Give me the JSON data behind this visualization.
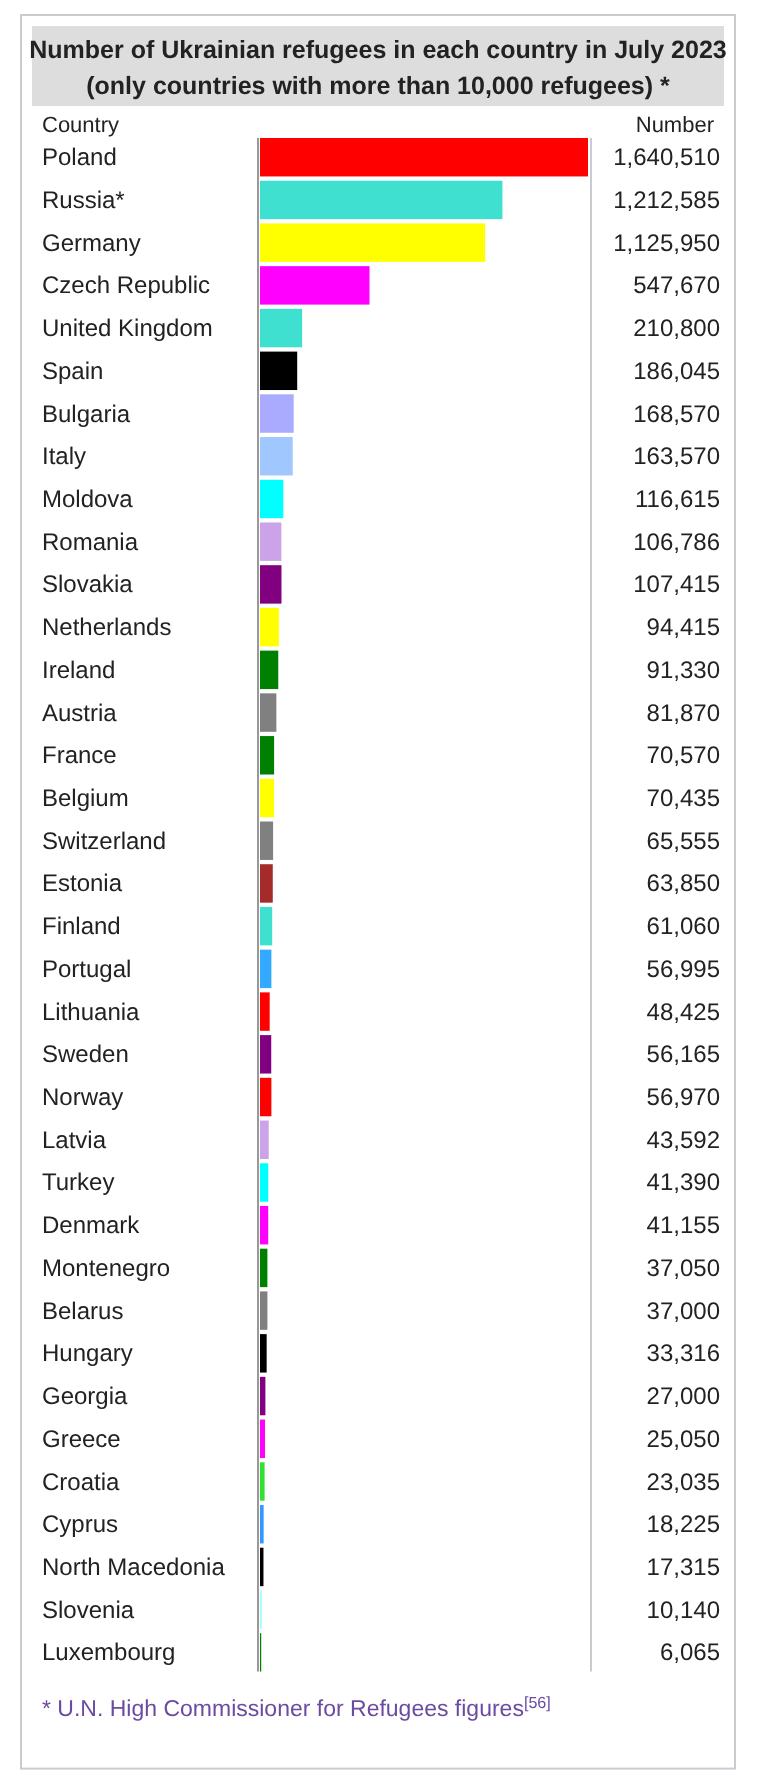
{
  "chart_data": {
    "type": "bar",
    "orientation": "horizontal",
    "value_labels": [
      "1,640,510",
      "1,212,585",
      "1,125,950",
      "547,670",
      "210,800",
      "186,045",
      "168,570",
      "163,570",
      "116,615",
      "106,786",
      "107,415",
      "94,415",
      "91,330",
      "81,870",
      "70,570",
      "70,435",
      "65,555",
      "63,850",
      "61,060",
      "56,995",
      "48,425",
      "56,165",
      "56,970",
      "43,592",
      "41,390",
      "41,155",
      "37,050",
      "37,000",
      "33,316",
      "27,000",
      "25,050",
      "23,035",
      "18,225",
      "17,315",
      "10,140",
      "6,065"
    ],
    "title": "Number of Ukrainian refugees in each country in July 2023",
    "subtitle": "(only countries with more than 10,000 refugees) *",
    "ylabel": "Country",
    "xlabel": "Number",
    "annotations": [
      "* U.N. High Commissioner for Refugees figures$^{[56]}$"
    ],
    "categories": [
      "Poland",
      "Russia*",
      "Germany",
      "Czech Republic",
      "United Kingdom",
      "Spain",
      "Bulgaria",
      "Italy",
      "Moldova",
      "Romania",
      "Slovakia",
      "Netherlands",
      "Ireland",
      "Austria",
      "France",
      "Belgium",
      "Switzerland",
      "Estonia",
      "Finland",
      "Portugal",
      "Lithuania",
      "Sweden",
      "Norway",
      "Latvia",
      "Turkey",
      "Denmark",
      "Montenegro",
      "Belarus",
      "Hungary",
      "Georgia",
      "Greece",
      "Croatia",
      "Cyprus",
      "North Macedonia",
      "Slovenia",
      "Luxembourg"
    ],
    "values": [
      1640510,
      1212585,
      1125950,
      547670,
      210800,
      186045,
      168570,
      163570,
      116615,
      106786,
      107415,
      94415,
      91330,
      81870,
      70570,
      70435,
      65555,
      63850,
      61060,
      56995,
      48425,
      56165,
      56970,
      43592,
      41390,
      41155,
      37050,
      37000,
      33316,
      27000,
      25050,
      23035,
      18225,
      17315,
      10140,
      6065
    ],
    "colors": [
      "#ff0000",
      "#40e0d0",
      "#ffff00",
      "#ff00ff",
      "#40e0d0",
      "#000000",
      "#aaaaff",
      "#a0c8ff",
      "#00ffff",
      "#cca3e8",
      "#800080",
      "#ffff00",
      "#008000",
      "#808080",
      "#008000",
      "#ffff00",
      "#808080",
      "#a52a2a",
      "#40e0d0",
      "#33aaff",
      "#ff0000",
      "#800080",
      "#ff0000",
      "#cca3e8",
      "#00ffff",
      "#ff00ff",
      "#008000",
      "#808080",
      "#000000",
      "#800080",
      "#ff00ff",
      "#32e032",
      "#3399ff",
      "#000000",
      "#aaffff",
      "#008000"
    ]
  }
}
